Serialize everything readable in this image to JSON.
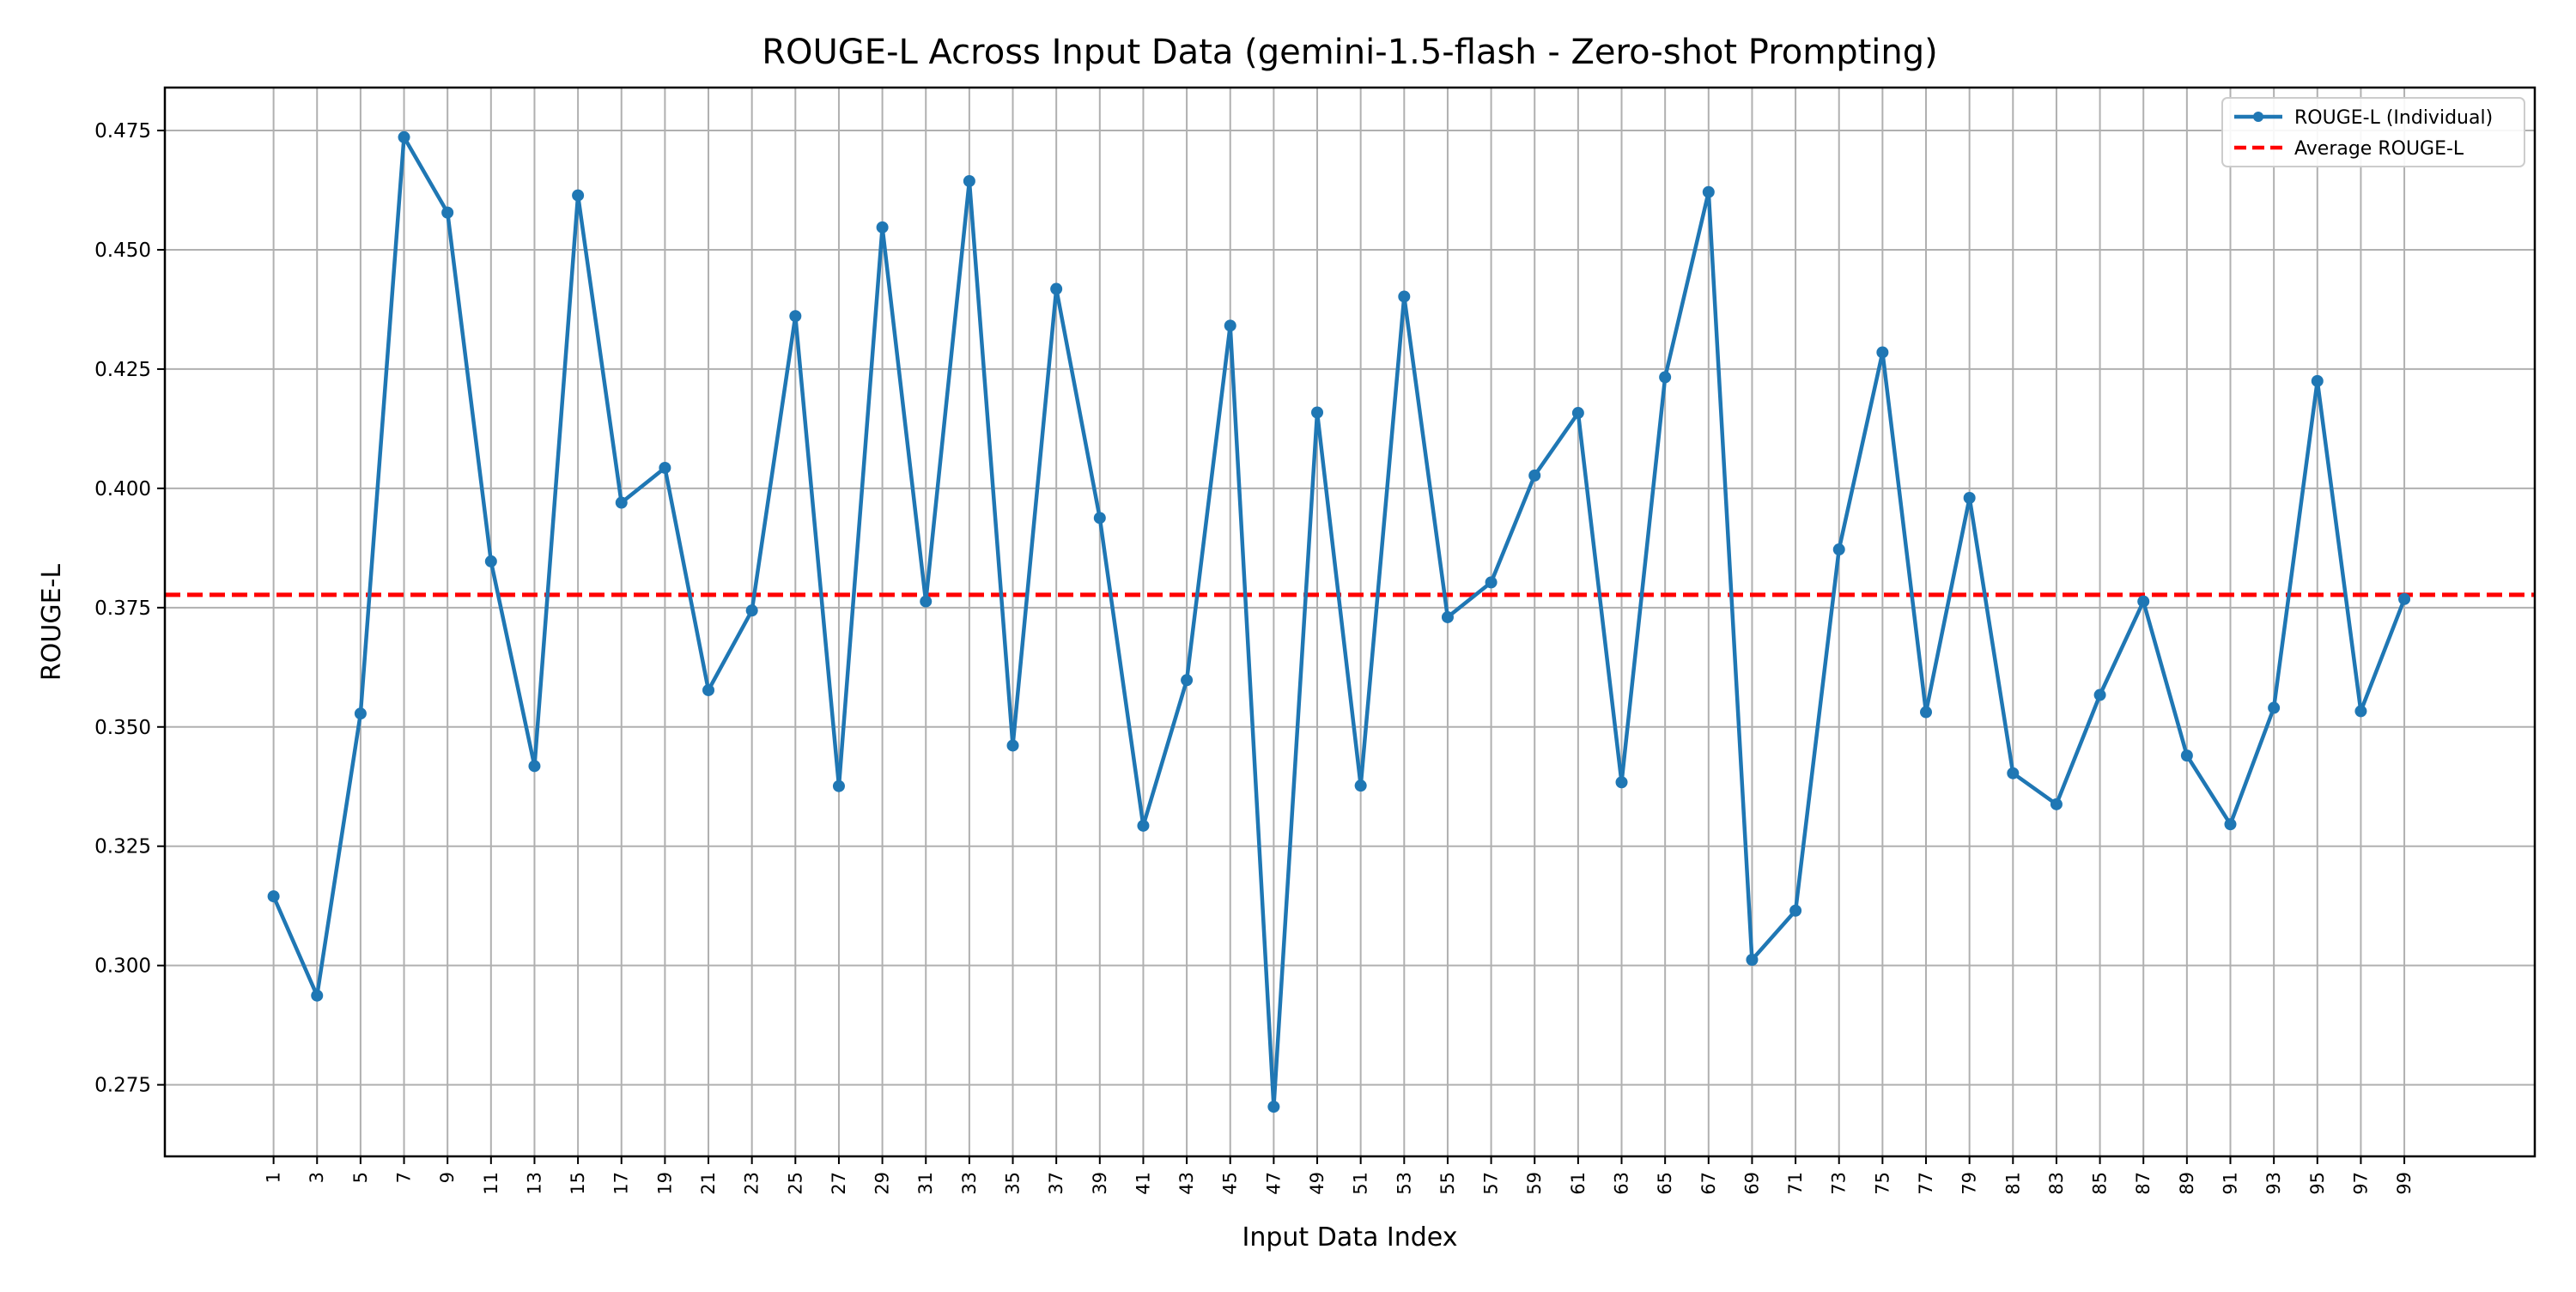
{
  "chart_data": {
    "type": "line",
    "title": "ROUGE-L Across Input Data (gemini-1.5-flash - Zero-shot Prompting)",
    "xlabel": "Input Data Index",
    "ylabel": "ROUGE-L",
    "xlim": [
      -4,
      105
    ],
    "ylim": [
      0.26,
      0.484
    ],
    "x_ticks": [
      1,
      3,
      5,
      7,
      9,
      11,
      13,
      15,
      17,
      19,
      21,
      23,
      25,
      27,
      29,
      31,
      33,
      35,
      37,
      39,
      41,
      43,
      45,
      47,
      49,
      51,
      53,
      55,
      57,
      59,
      61,
      63,
      65,
      67,
      69,
      71,
      73,
      75,
      77,
      79,
      81,
      83,
      85,
      87,
      89,
      91,
      93,
      95,
      97,
      99
    ],
    "y_ticks": [
      0.275,
      0.3,
      0.325,
      0.35,
      0.375,
      0.4,
      0.425,
      0.45,
      0.475
    ],
    "y_tick_labels": [
      "0.275",
      "0.300",
      "0.325",
      "0.350",
      "0.375",
      "0.400",
      "0.425",
      "0.450",
      "0.475"
    ],
    "grid": true,
    "legend_position": "top-right",
    "series": [
      {
        "name": "ROUGE-L (Individual)",
        "color": "#1f77b4",
        "style": "solid-with-markers",
        "x": [
          1,
          3,
          5,
          7,
          9,
          11,
          13,
          15,
          17,
          19,
          21,
          23,
          25,
          27,
          29,
          31,
          33,
          35,
          37,
          39,
          41,
          43,
          45,
          47,
          49,
          51,
          53,
          55,
          57,
          59,
          61,
          63,
          65,
          67,
          69,
          71,
          73,
          75,
          77,
          79,
          81,
          83,
          85,
          87,
          89,
          91,
          93,
          95,
          97,
          99
        ],
        "values": [
          0.3145,
          0.2937,
          0.3528,
          0.4736,
          0.4578,
          0.3847,
          0.3418,
          0.4614,
          0.397,
          0.4043,
          0.3577,
          0.3744,
          0.4361,
          0.3376,
          0.4547,
          0.3763,
          0.4644,
          0.3461,
          0.4418,
          0.3938,
          0.3293,
          0.3598,
          0.4341,
          0.2704,
          0.4159,
          0.3377,
          0.4402,
          0.373,
          0.3803,
          0.4027,
          0.4158,
          0.3384,
          0.4233,
          0.4621,
          0.3012,
          0.3115,
          0.3872,
          0.4285,
          0.3531,
          0.398,
          0.3403,
          0.3338,
          0.3567,
          0.3763,
          0.344,
          0.3296,
          0.354,
          0.4225,
          0.3533,
          0.3768
        ]
      }
    ],
    "reference_lines": [
      {
        "name": "Average ROUGE-L",
        "value": 0.3777,
        "color": "#ff0000",
        "style": "dashed"
      }
    ]
  }
}
